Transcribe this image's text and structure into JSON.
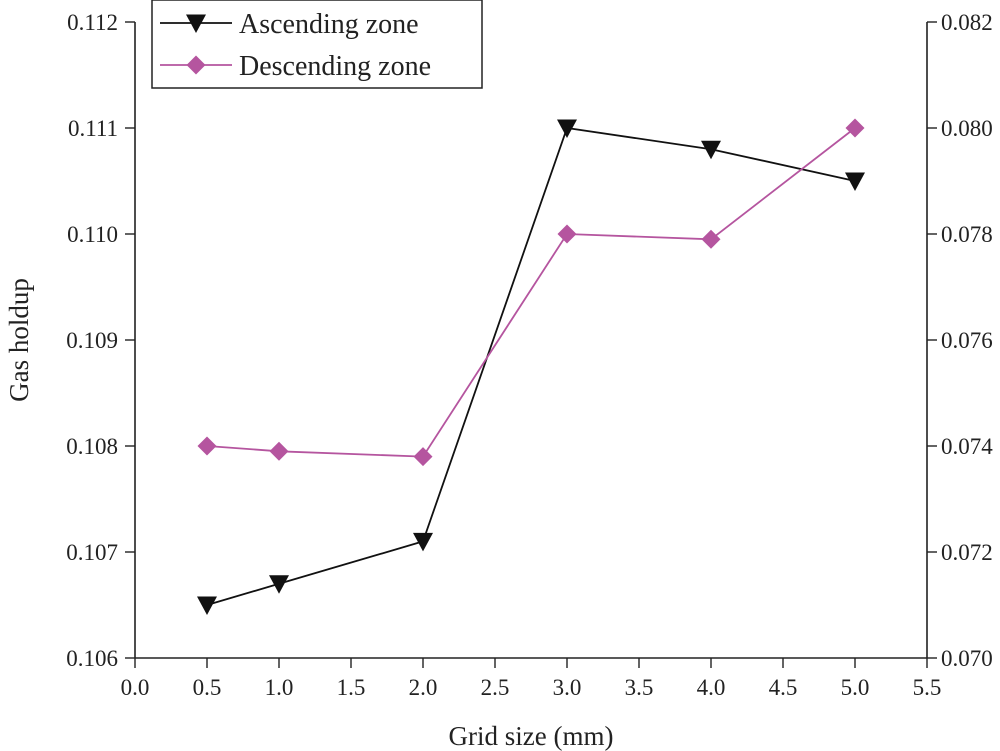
{
  "chart_data": {
    "type": "line",
    "title": "",
    "xlabel": "Grid size (mm)",
    "ylabel": "Gas holdup",
    "y2label": "",
    "xlim": [
      0.0,
      5.5
    ],
    "ylim": [
      0.106,
      0.112
    ],
    "y2lim": [
      0.07,
      0.082
    ],
    "grid": false,
    "legend_position": "top-left",
    "x_ticks": [
      "0.0",
      "0.5",
      "1.0",
      "1.5",
      "2.0",
      "2.5",
      "3.0",
      "3.5",
      "4.0",
      "4.5",
      "5.0",
      "5.5"
    ],
    "y_ticks": [
      "0.106",
      "0.107",
      "0.108",
      "0.109",
      "0.110",
      "0.111",
      "0.112"
    ],
    "y2_ticks": [
      "0.070",
      "0.072",
      "0.074",
      "0.076",
      "0.078",
      "0.080",
      "0.082"
    ],
    "series": [
      {
        "name": "Ascending zone",
        "axis": "left",
        "marker": "triangle-down",
        "color": "#111111",
        "x": [
          0.5,
          1.0,
          2.0,
          3.0,
          4.0,
          5.0
        ],
        "y": [
          0.1065,
          0.1067,
          0.1071,
          0.111,
          0.1108,
          0.1105
        ]
      },
      {
        "name": "Descending zone",
        "axis": "right",
        "marker": "diamond",
        "color": "#b5559f",
        "x": [
          0.5,
          1.0,
          2.0,
          3.0,
          4.0,
          5.0
        ],
        "y": [
          0.074,
          0.0739,
          0.0738,
          0.078,
          0.0779,
          0.08
        ]
      }
    ]
  }
}
